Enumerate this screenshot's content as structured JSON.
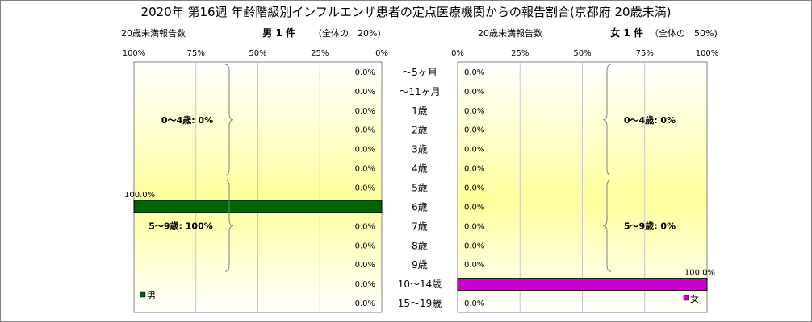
{
  "title": "2020年 第16週 年齢階級別インフルエンザ患者の定点医療機関からの報告割合(京都府 20歳未満)",
  "male_panel": {
    "caption": "20歳未満報告数",
    "count_label": "男 1 件",
    "share_label": "（全体の　20%)",
    "legend": "男",
    "color": "#006400",
    "groups": [
      {
        "label": "0～4歳: 0%"
      },
      {
        "label": "5～9歳: 100%"
      }
    ]
  },
  "female_panel": {
    "caption": "20歳未満報告数",
    "count_label": "女 1 件",
    "share_label": "（全体の　50%)",
    "legend": "女",
    "color": "#cc00cc",
    "groups": [
      {
        "label": "0～4歳: 0%"
      },
      {
        "label": "5～9歳: 0%"
      }
    ]
  },
  "chart_data": {
    "type": "bar",
    "title": "2020年 第16週 年齢階級別インフルエンザ患者の定点医療機関からの報告割合(京都府 20歳未満)",
    "categories": [
      "～5ヶ月",
      "～11ヶ月",
      "1歳",
      "2歳",
      "3歳",
      "4歳",
      "5歳",
      "6歳",
      "7歳",
      "8歳",
      "9歳",
      "10～14歳",
      "15～19歳"
    ],
    "series": [
      {
        "name": "男",
        "values": [
          0,
          0,
          0,
          0,
          0,
          0,
          0,
          100,
          0,
          0,
          0,
          0,
          0
        ],
        "labels": [
          "0.0%",
          "0.0%",
          "0.0%",
          "0.0%",
          "0.0%",
          "0.0%",
          "0.0%",
          "100.0%",
          "0.0%",
          "0.0%",
          "0.0%",
          "0.0%",
          "0.0%"
        ]
      },
      {
        "name": "女",
        "values": [
          0,
          0,
          0,
          0,
          0,
          0,
          0,
          0,
          0,
          0,
          0,
          100,
          0
        ],
        "labels": [
          "0.0%",
          "0.0%",
          "0.0%",
          "0.0%",
          "0.0%",
          "0.0%",
          "0.0%",
          "0.0%",
          "0.0%",
          "0.0%",
          "0.0%",
          "100.0%",
          "0.0%"
        ]
      }
    ],
    "male_ticks": [
      "100%",
      "75%",
      "50%",
      "25%",
      "0%"
    ],
    "female_ticks": [
      "0%",
      "25%",
      "50%",
      "75%",
      "100%"
    ],
    "xlim": [
      0,
      100
    ],
    "grid": true
  }
}
